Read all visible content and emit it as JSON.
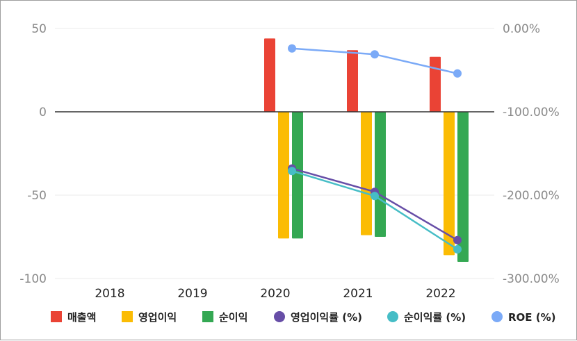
{
  "chart_data": {
    "type": "bar",
    "categories": [
      "2018",
      "2019",
      "2020",
      "2021",
      "2022"
    ],
    "left_axis": {
      "min": -100,
      "max": 50,
      "ticks": [
        "50",
        "0",
        "-50",
        "-100"
      ]
    },
    "right_axis": {
      "min": -300,
      "max": 0,
      "ticks": [
        "0.00%",
        "-100.00%",
        "-200.00%",
        "-300.00%"
      ]
    },
    "bar_series": [
      {
        "name": "매출액",
        "color": "#ea4335",
        "values": [
          null,
          null,
          44,
          37,
          33
        ]
      },
      {
        "name": "영업이익",
        "color": "#fbbc04",
        "values": [
          null,
          null,
          -76,
          -74,
          -86
        ]
      },
      {
        "name": "순이익",
        "color": "#34a853",
        "values": [
          null,
          null,
          -76,
          -75,
          -90
        ]
      }
    ],
    "line_series": [
      {
        "name": "영업이익률 (%)",
        "color": "#674ea7",
        "values": [
          null,
          null,
          -168,
          -196,
          -254
        ]
      },
      {
        "name": "순이익률 (%)",
        "color": "#46bdc6",
        "values": [
          null,
          null,
          -171,
          -201,
          -265
        ]
      },
      {
        "name": "ROE (%)",
        "color": "#7baaf7",
        "values": [
          null,
          null,
          -24,
          -31,
          -54
        ]
      }
    ],
    "grid": true,
    "legend_position": "bottom"
  }
}
